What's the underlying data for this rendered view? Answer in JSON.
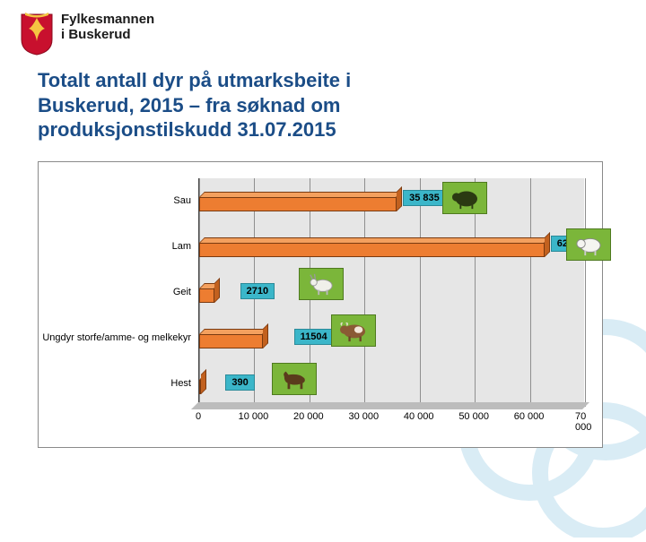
{
  "org": {
    "line1": "Fylkesmannen",
    "line2": "i Buskerud"
  },
  "title_lines": [
    "Totalt antall dyr på utmarksbeite i",
    "Buskerud, 2015 – fra søknad om",
    "produksjonstilskudd 31.07.2015"
  ],
  "chart": {
    "type": "bar-horizontal-3d",
    "background_color": "#ffffff",
    "plot_bg": "#e6e6e6",
    "grid_color": "#8f8f8f",
    "bar_face_color": "#ed7d31",
    "bar_top_color": "#f4a05e",
    "bar_side_color": "#c2611f",
    "label_bg": "#3bb6c9",
    "animal_bg": "#7bb63a",
    "xlim": [
      0,
      70000
    ],
    "xtick_step": 10000,
    "xticks": [
      "0",
      "10 000",
      "20 000",
      "30 000",
      "40 000",
      "50 000",
      "60 000",
      "70 000"
    ],
    "categories": [
      {
        "name": "Sau",
        "value": 35835,
        "label": "35 835",
        "icon": "sheep-dark"
      },
      {
        "name": "Lam",
        "value": 62640,
        "label": "62 640",
        "icon": "lamb"
      },
      {
        "name": "Geit",
        "value": 2710,
        "label": "2710",
        "icon": "goat"
      },
      {
        "name": "Ungdyr storfe/amme- og melkekyr",
        "value": 11504,
        "label": "11504",
        "icon": "cow"
      },
      {
        "name": "Hest",
        "value": 390,
        "label": "390",
        "icon": "horse"
      }
    ],
    "label_fontsize": 11,
    "axis_fontsize": 11
  },
  "colors": {
    "title": "#1b4d87",
    "watermark": "#d9ecf5",
    "shield_red": "#c8102e",
    "shield_gold": "#f5c542"
  }
}
